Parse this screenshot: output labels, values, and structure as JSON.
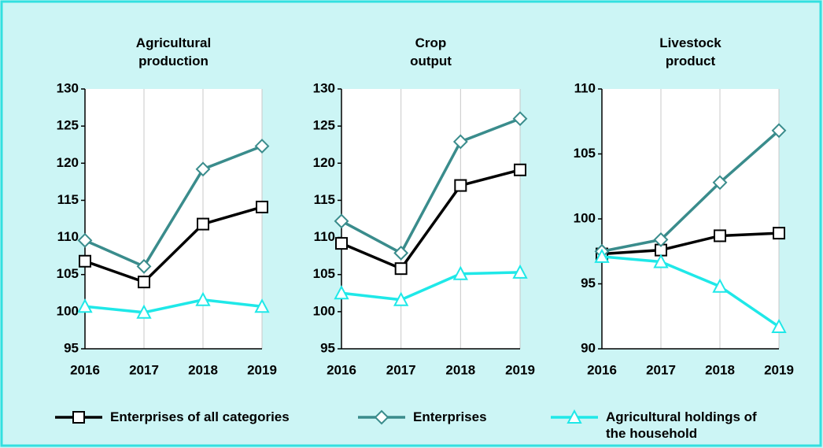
{
  "chart_data": [
    {
      "type": "line",
      "title": "Agricultural production",
      "categories": [
        "2016",
        "2017",
        "2018",
        "2019"
      ],
      "ylim": [
        95,
        130
      ],
      "yticks": [
        95,
        100,
        105,
        110,
        115,
        120,
        125,
        130
      ],
      "grid": true,
      "series": [
        {
          "name": "Enterprises of all categories",
          "color": "#000000",
          "marker": "square",
          "values": [
            106.8,
            104.0,
            111.8,
            114.1
          ]
        },
        {
          "name": "Enterprises",
          "color": "#3a8c8c",
          "marker": "diamond",
          "values": [
            109.6,
            106.1,
            119.2,
            122.3
          ]
        },
        {
          "name": "Agricultural holdings of the household",
          "color": "#1fe8e8",
          "marker": "triangle",
          "values": [
            100.7,
            99.9,
            101.6,
            100.7
          ]
        }
      ]
    },
    {
      "type": "line",
      "title": "Crop output",
      "categories": [
        "2016",
        "2017",
        "2018",
        "2019"
      ],
      "ylim": [
        95,
        130
      ],
      "yticks": [
        95,
        100,
        105,
        110,
        115,
        120,
        125,
        130
      ],
      "grid": true,
      "series": [
        {
          "name": "Enterprises of all categories",
          "color": "#000000",
          "marker": "square",
          "values": [
            109.2,
            105.8,
            117.0,
            119.1
          ]
        },
        {
          "name": "Enterprises",
          "color": "#3a8c8c",
          "marker": "diamond",
          "values": [
            112.2,
            107.9,
            122.9,
            126.0
          ]
        },
        {
          "name": "Agricultural holdings of the household",
          "color": "#1fe8e8",
          "marker": "triangle",
          "values": [
            102.5,
            101.6,
            105.1,
            105.3
          ]
        }
      ]
    },
    {
      "type": "line",
      "title": "Livestock product",
      "categories": [
        "2016",
        "2017",
        "2018",
        "2019"
      ],
      "ylim": [
        90,
        110
      ],
      "yticks": [
        90,
        95,
        100,
        105,
        110
      ],
      "grid": true,
      "series": [
        {
          "name": "Enterprises of all categories",
          "color": "#000000",
          "marker": "square",
          "values": [
            97.3,
            97.6,
            98.7,
            98.9
          ]
        },
        {
          "name": "Enterprises",
          "color": "#3a8c8c",
          "marker": "diamond",
          "values": [
            97.5,
            98.4,
            102.8,
            106.8
          ]
        },
        {
          "name": "Agricultural holdings of the household",
          "color": "#1fe8e8",
          "marker": "triangle",
          "values": [
            97.1,
            96.7,
            94.8,
            91.7
          ]
        }
      ]
    }
  ]
}
